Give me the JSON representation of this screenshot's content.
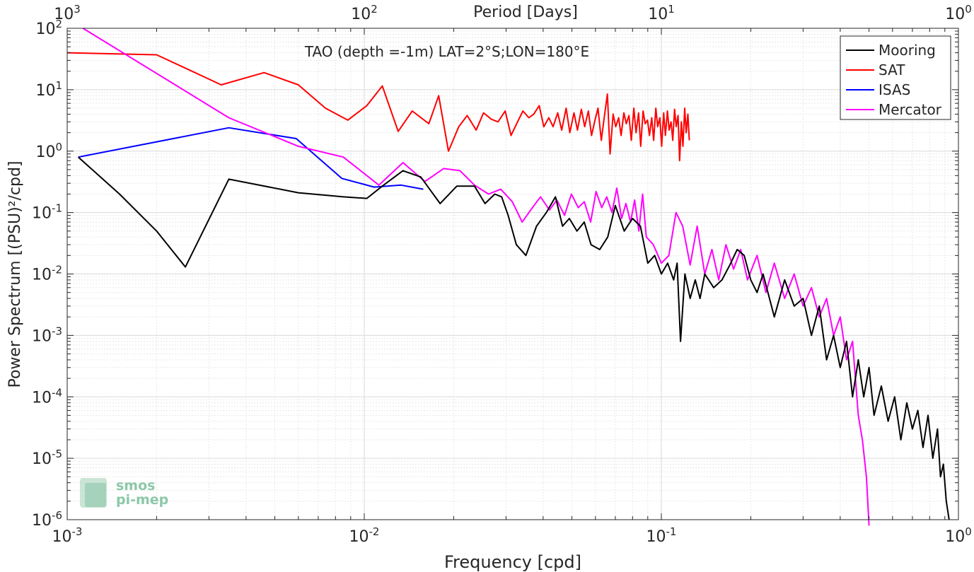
{
  "chart_data": {
    "type": "line",
    "title": "TAO (depth =-1m) LAT=2°S;LON=180°E",
    "xlabel": "Frequency [cpd]",
    "ylabel": "Power Spectrum [(PSU)²/cpd]",
    "top_xlabel": "Period [Days]",
    "x_scale": "log",
    "y_scale": "log",
    "xlim": [
      0.001,
      1
    ],
    "ylim": [
      1e-06,
      100
    ],
    "grid": true,
    "minor_grid": true,
    "legend_position": "top-right",
    "x_ticks": [
      {
        "value": 0.001,
        "base": "10",
        "exp": "-3"
      },
      {
        "value": 0.01,
        "base": "10",
        "exp": "-2"
      },
      {
        "value": 0.1,
        "base": "10",
        "exp": "-1"
      },
      {
        "value": 1,
        "base": "10",
        "exp": "0"
      }
    ],
    "top_x_ticks": [
      {
        "freq": 0.001,
        "base": "10",
        "exp": "3"
      },
      {
        "freq": 0.01,
        "base": "10",
        "exp": "2"
      },
      {
        "freq": 0.1,
        "base": "10",
        "exp": "1"
      },
      {
        "freq": 1,
        "base": "10",
        "exp": "0"
      }
    ],
    "y_ticks": [
      {
        "value": 100,
        "base": "10",
        "exp": "2"
      },
      {
        "value": 10,
        "base": "10",
        "exp": "1"
      },
      {
        "value": 1,
        "base": "10",
        "exp": "0"
      },
      {
        "value": 0.1,
        "base": "10",
        "exp": "-1"
      },
      {
        "value": 0.01,
        "base": "10",
        "exp": "-2"
      },
      {
        "value": 0.001,
        "base": "10",
        "exp": "-3"
      },
      {
        "value": 0.0001,
        "base": "10",
        "exp": "-4"
      },
      {
        "value": 1e-05,
        "base": "10",
        "exp": "-5"
      },
      {
        "value": 1e-06,
        "base": "10",
        "exp": "-6"
      }
    ],
    "series": [
      {
        "name": "Mooring",
        "color": "#000000",
        "x": [
          0.00109,
          0.0015,
          0.002,
          0.0025,
          0.0035,
          0.006,
          0.0085,
          0.0102,
          0.0115,
          0.0135,
          0.0155,
          0.0165,
          0.018,
          0.0205,
          0.0235,
          0.0255,
          0.0275,
          0.029,
          0.0305,
          0.0325,
          0.035,
          0.038,
          0.041,
          0.044,
          0.0465,
          0.049,
          0.052,
          0.055,
          0.058,
          0.062,
          0.066,
          0.07,
          0.075,
          0.08,
          0.085,
          0.09,
          0.095,
          0.1,
          0.105,
          0.11,
          0.113,
          0.116,
          0.12,
          0.125,
          0.13,
          0.135,
          0.14,
          0.15,
          0.16,
          0.17,
          0.18,
          0.19,
          0.2,
          0.21,
          0.22,
          0.24,
          0.26,
          0.28,
          0.3,
          0.32,
          0.34,
          0.36,
          0.38,
          0.4,
          0.42,
          0.44,
          0.46,
          0.48,
          0.5,
          0.52,
          0.55,
          0.58,
          0.61,
          0.64,
          0.67,
          0.7,
          0.73,
          0.76,
          0.79,
          0.82,
          0.85,
          0.87,
          0.89,
          0.91,
          0.93
        ],
        "y": [
          0.8,
          0.2,
          0.05,
          0.013,
          0.35,
          0.21,
          0.18,
          0.17,
          0.27,
          0.48,
          0.38,
          0.25,
          0.14,
          0.27,
          0.27,
          0.14,
          0.2,
          0.18,
          0.09,
          0.03,
          0.02,
          0.06,
          0.1,
          0.18,
          0.06,
          0.08,
          0.05,
          0.07,
          0.03,
          0.025,
          0.04,
          0.13,
          0.05,
          0.08,
          0.06,
          0.015,
          0.02,
          0.01,
          0.015,
          0.008,
          0.015,
          0.0008,
          0.01,
          0.004,
          0.008,
          0.004,
          0.01,
          0.006,
          0.008,
          0.014,
          0.025,
          0.02,
          0.008,
          0.005,
          0.01,
          0.002,
          0.008,
          0.003,
          0.004,
          0.001,
          0.003,
          0.0004,
          0.001,
          0.0003,
          0.0008,
          0.0001,
          0.0004,
          0.0001,
          0.0003,
          5e-05,
          0.00015,
          4e-05,
          0.0001,
          2e-05,
          8e-05,
          3e-05,
          6e-05,
          1.5e-05,
          5e-05,
          1e-05,
          3e-05,
          5e-06,
          8e-06,
          2e-06,
          1e-06
        ]
      },
      {
        "name": "SAT",
        "color": "#ff0000",
        "x": [
          0.001,
          0.002,
          0.0033,
          0.0046,
          0.006,
          0.0074,
          0.0088,
          0.0102,
          0.0115,
          0.013,
          0.0145,
          0.0165,
          0.0178,
          0.0192,
          0.0208,
          0.0222,
          0.0238,
          0.0252,
          0.0268,
          0.0282,
          0.0298,
          0.0312,
          0.0328,
          0.0342,
          0.0358,
          0.0372,
          0.0388,
          0.0402,
          0.0418,
          0.0432,
          0.0448,
          0.0462,
          0.0478,
          0.0492,
          0.0508,
          0.0522,
          0.0538,
          0.0552,
          0.0568,
          0.0582,
          0.0598,
          0.0612,
          0.0628,
          0.0642,
          0.0658,
          0.0672,
          0.0688,
          0.0702,
          0.0718,
          0.0732,
          0.0748,
          0.0762,
          0.0778,
          0.0792,
          0.0808,
          0.0822,
          0.0838,
          0.0852,
          0.0868,
          0.0882,
          0.0898,
          0.0912,
          0.0928,
          0.0942,
          0.0958,
          0.0972,
          0.0988,
          0.1002,
          0.1018,
          0.1032,
          0.1048,
          0.1062,
          0.1078,
          0.1092,
          0.1108,
          0.1122,
          0.1138,
          0.1152,
          0.1168,
          0.1182,
          0.1198,
          0.1212,
          0.1228,
          0.1242
        ],
        "y": [
          40,
          37,
          12,
          19,
          12,
          5,
          3.2,
          5.5,
          11.5,
          2.1,
          4.5,
          2.8,
          8,
          1,
          2.5,
          3.8,
          2.2,
          4.2,
          3.3,
          3,
          4.5,
          1.8,
          3,
          4.5,
          3.5,
          4,
          5.5,
          2.5,
          3.5,
          2.5,
          4.2,
          2.2,
          5,
          2,
          4.2,
          2.2,
          4.8,
          2.5,
          4.5,
          1.8,
          3.2,
          5,
          1.5,
          3.5,
          8.5,
          0.9,
          4,
          2.5,
          3.5,
          1.8,
          4.2,
          2.8,
          3.8,
          1.5,
          5,
          2,
          4.2,
          1.2,
          4.5,
          2.8,
          3.2,
          1.8,
          3.5,
          1.5,
          5,
          2.5,
          3.5,
          1.2,
          4.2,
          1.8,
          4.5,
          2.2,
          3,
          1.5,
          4.8,
          2.5,
          3.8,
          0.7,
          3,
          1.2,
          5,
          2,
          4,
          1.5
        ]
      },
      {
        "name": "ISAS",
        "color": "#0000ff",
        "x": [
          0.00109,
          0.0035,
          0.0059,
          0.0084,
          0.0108,
          0.0133,
          0.0158
        ],
        "y": [
          0.8,
          2.4,
          1.6,
          0.36,
          0.26,
          0.28,
          0.24
        ]
      },
      {
        "name": "Mercator",
        "color": "#ff00ff",
        "x": [
          0.00113,
          0.0035,
          0.006,
          0.0085,
          0.0112,
          0.0135,
          0.016,
          0.0185,
          0.021,
          0.0235,
          0.0262,
          0.0288,
          0.0315,
          0.034,
          0.0368,
          0.0392,
          0.042,
          0.0445,
          0.0472,
          0.0498,
          0.0525,
          0.055,
          0.0578,
          0.0603,
          0.063,
          0.0655,
          0.0682,
          0.0708,
          0.0735,
          0.076,
          0.0788,
          0.0813,
          0.084,
          0.0865,
          0.089,
          0.094,
          0.1,
          0.106,
          0.112,
          0.118,
          0.125,
          0.132,
          0.14,
          0.148,
          0.156,
          0.165,
          0.175,
          0.185,
          0.195,
          0.21,
          0.225,
          0.24,
          0.26,
          0.28,
          0.3,
          0.32,
          0.34,
          0.36,
          0.38,
          0.4,
          0.42,
          0.44,
          0.46,
          0.475,
          0.49,
          0.5
        ],
        "y": [
          100,
          3.5,
          1.2,
          0.8,
          0.28,
          0.65,
          0.32,
          0.52,
          0.48,
          0.28,
          0.2,
          0.24,
          0.15,
          0.07,
          0.12,
          0.18,
          0.11,
          0.16,
          0.09,
          0.2,
          0.12,
          0.15,
          0.07,
          0.22,
          0.12,
          0.18,
          0.1,
          0.25,
          0.08,
          0.14,
          0.07,
          0.16,
          0.05,
          0.2,
          0.04,
          0.03,
          0.015,
          0.02,
          0.1,
          0.06,
          0.014,
          0.06,
          0.01,
          0.025,
          0.008,
          0.03,
          0.012,
          0.025,
          0.008,
          0.02,
          0.005,
          0.015,
          0.004,
          0.01,
          0.003,
          0.006,
          0.002,
          0.004,
          0.001,
          0.002,
          0.0004,
          0.0008,
          5e-05,
          2e-05,
          5e-06,
          8e-07
        ]
      }
    ]
  },
  "logo": {
    "line1": "smos",
    "line2": "pi-mep",
    "color": "#7fbf9f"
  }
}
